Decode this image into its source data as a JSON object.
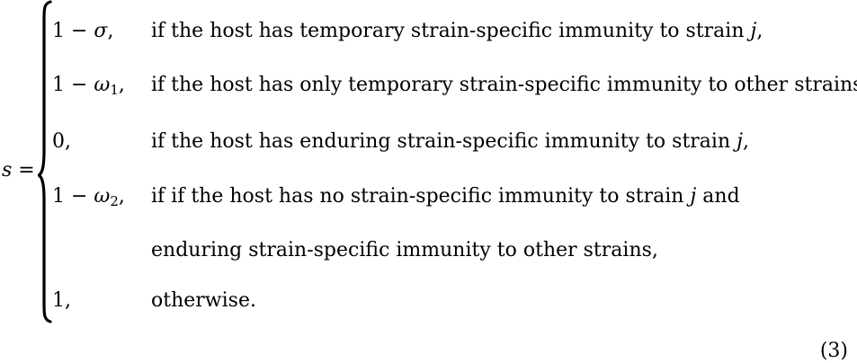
{
  "equation": {
    "lhs_var": "s",
    "lhs_eq": " =",
    "cases": [
      {
        "value_pre": "1 − ",
        "value_sym": "σ",
        "value_sub": "",
        "value_post": ",",
        "cond_pre": "if the host has temporary strain-specific immunity to strain ",
        "cond_var": "j",
        "cond_post": ","
      },
      {
        "value_pre": "1 − ",
        "value_sym": "ω",
        "value_sub": "1",
        "value_post": ",",
        "cond_pre": "if the host has only temporary strain-specific immunity to other strains,",
        "cond_var": "",
        "cond_post": ""
      },
      {
        "value_pre": "0,",
        "value_sym": "",
        "value_sub": "",
        "value_post": "",
        "cond_pre": "if the host has enduring strain-specific immunity to strain ",
        "cond_var": "j",
        "cond_post": ","
      },
      {
        "value_pre": "1 − ",
        "value_sym": "ω",
        "value_sub": "2",
        "value_post": ",",
        "cond_pre": "if if the host has no strain-specific immunity to strain ",
        "cond_var": "j",
        "cond_post": " and"
      },
      {
        "value_pre": "",
        "value_sym": "",
        "value_sub": "",
        "value_post": "",
        "cond_pre": "enduring strain-specific immunity to other strains,",
        "cond_var": "",
        "cond_post": ""
      },
      {
        "value_pre": "1,",
        "value_sym": "",
        "value_sub": "",
        "value_post": "",
        "cond_pre": "otherwise.",
        "cond_var": "",
        "cond_post": ""
      }
    ],
    "number": "(3)"
  }
}
